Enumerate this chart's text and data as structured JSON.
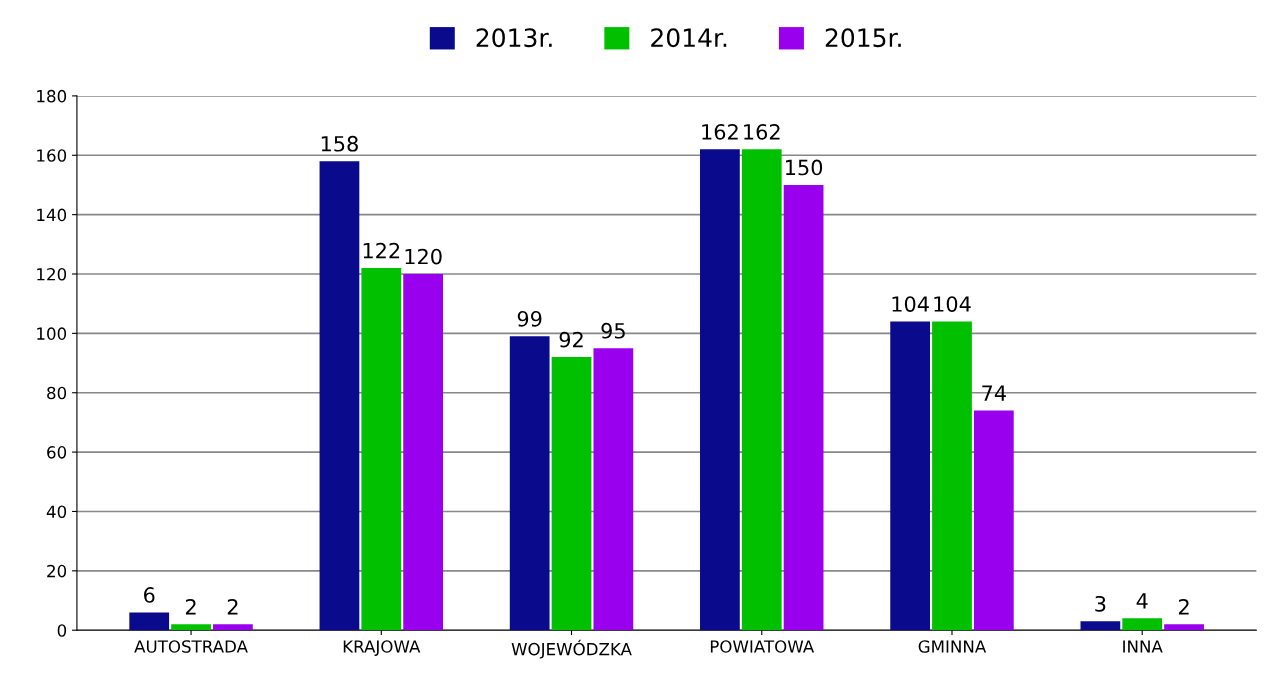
{
  "chart_data": {
    "type": "bar",
    "categories": [
      "AUTOSTRADA",
      "KRAJOWA",
      "WOJEWÓDZKA",
      "POWIATOWA",
      "GMINNA",
      "INNA"
    ],
    "series": [
      {
        "name": "2013r.",
        "color": "#0a0a8c",
        "values": [
          6,
          158,
          99,
          162,
          104,
          3
        ]
      },
      {
        "name": "2014r.",
        "color": "#00c000",
        "values": [
          2,
          122,
          92,
          162,
          104,
          4
        ]
      },
      {
        "name": "2015r.",
        "color": "#9900ee",
        "values": [
          2,
          120,
          95,
          150,
          74,
          2
        ]
      }
    ],
    "ylim": [
      0,
      180
    ],
    "yticks": [
      0,
      20,
      40,
      60,
      80,
      100,
      120,
      140,
      160,
      180
    ],
    "grid": "y",
    "legend": "top",
    "data_labels": true
  }
}
